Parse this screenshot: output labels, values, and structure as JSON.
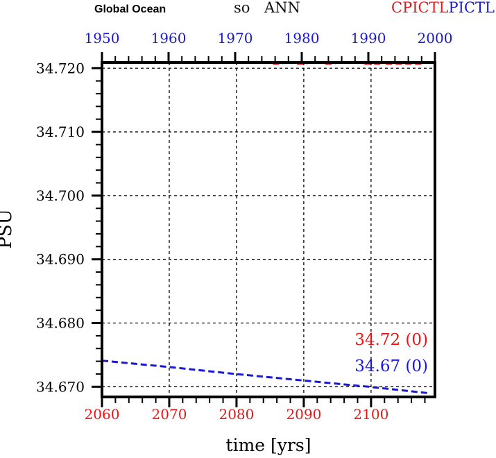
{
  "header": {
    "region": "Global Ocean",
    "variable": "so",
    "statistic": "ANN",
    "run1": "CPICTL",
    "run2": "PICTL"
  },
  "colors": {
    "red": "#ee1414",
    "blue": "#1818d6",
    "axis": "#000000"
  },
  "chart_data": {
    "type": "line",
    "title": "Global Ocean",
    "variable": "so",
    "statistic": "ANN",
    "grid": {
      "on": true,
      "style": "dashed",
      "vertical_years": [
        2070,
        2080,
        2090,
        2100
      ],
      "horizontal_values": [
        34.72,
        34.71,
        34.7,
        34.69,
        34.68,
        34.67
      ]
    },
    "y_axis": {
      "label": "PSU",
      "ticks": [
        {
          "value": 34.72,
          "label": "34.720"
        },
        {
          "value": 34.71,
          "label": "34.710"
        },
        {
          "value": 34.7,
          "label": "34.700"
        },
        {
          "value": 34.69,
          "label": "34.690"
        },
        {
          "value": 34.68,
          "label": "34.680"
        },
        {
          "value": 34.67,
          "label": "34.670"
        }
      ],
      "range": [
        34.6684,
        34.7209
      ],
      "minor_step": 0.002
    },
    "top_x_axis": {
      "ticks": [
        1950,
        1960,
        1970,
        1980,
        1990,
        2000
      ],
      "range": [
        1950,
        2000
      ],
      "minor_step": 2,
      "tick_label_color": "#1818d6"
    },
    "bottom_x_axis": {
      "label": "time [yrs]",
      "ticks": [
        2060,
        2070,
        2080,
        2090,
        2100
      ],
      "range": [
        2060,
        2109.5
      ],
      "minor_step": 2,
      "tick_label_color": "#ee1414"
    },
    "series": [
      {
        "name": "CPICTL",
        "color": "#ee1414",
        "x_axis": "bottom",
        "line_style": "dashed",
        "annotation": "34.72 (0)",
        "segments": [
          [
            [
              2085.4,
              34.7207
            ],
            [
              2086.9,
              34.7207
            ]
          ],
          [
            [
              2089.0,
              34.7207
            ],
            [
              2090.5,
              34.7207
            ]
          ],
          [
            [
              2093.2,
              34.7207
            ],
            [
              2094.7,
              34.7207
            ]
          ],
          [
            [
              2099.0,
              34.7207
            ],
            [
              2101.6,
              34.7207
            ]
          ],
          [
            [
              2102.2,
              34.7207
            ],
            [
              2107.5,
              34.7207
            ]
          ]
        ]
      },
      {
        "name": "PICTL",
        "color": "#1818d6",
        "x_axis": "top",
        "line_style": "dashed",
        "annotation": "34.67 (0)",
        "segments": [
          [
            [
              1950,
              34.6741
            ],
            [
              1960,
              34.6731
            ],
            [
              1970,
              34.672
            ],
            [
              1980,
              34.671
            ],
            [
              1990,
              34.67
            ],
            [
              1999,
              34.669
            ]
          ]
        ]
      }
    ],
    "annotations_position": "inside-right"
  }
}
